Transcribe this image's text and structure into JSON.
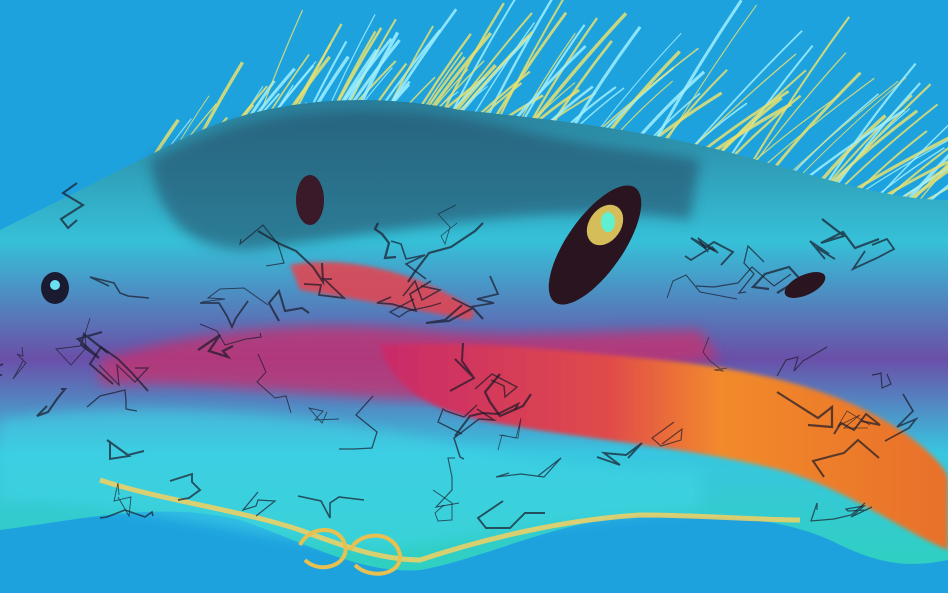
{
  "image": {
    "subject": "micrograph",
    "colors": {
      "background": "#1ea2de",
      "tissue_cyan": "#2fc6d8",
      "tissue_teal": "#24a7a8",
      "band_orange": "#f08a2a",
      "band_magenta": "#d2306e",
      "purple": "#5a3f9a",
      "hair_yellow": "#e8e070",
      "hair_cyan": "#9ff0ff",
      "vessel_dark": "#1a1a2a"
    }
  }
}
